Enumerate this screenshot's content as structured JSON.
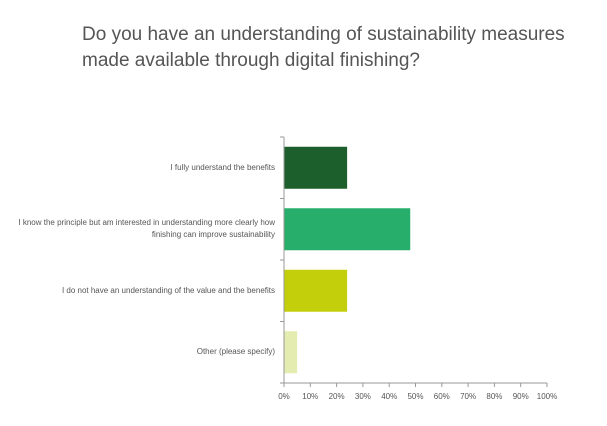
{
  "chart_data": {
    "type": "bar",
    "orientation": "horizontal",
    "title": "Do you have an understanding of sustainability measures\nmade available through digital finishing?",
    "categories": [
      "I fully understand the benefits",
      "I know the principle but am interested in understanding more clearly how finishing can improve sustainability",
      "I do not have an understanding of the value and the benefits",
      "Other (please specify)"
    ],
    "values": [
      24,
      48,
      24,
      5
    ],
    "colors": [
      "#1c5f2c",
      "#27ae6a",
      "#c4cf0b",
      "#e4ecb0"
    ],
    "xlim": [
      0,
      100
    ],
    "x_ticks": [
      "0%",
      "10%",
      "20%",
      "30%",
      "40%",
      "50%",
      "60%",
      "70%",
      "80%",
      "90%",
      "100%"
    ],
    "xlabel": "",
    "ylabel": "",
    "grid": false,
    "legend": "none"
  }
}
